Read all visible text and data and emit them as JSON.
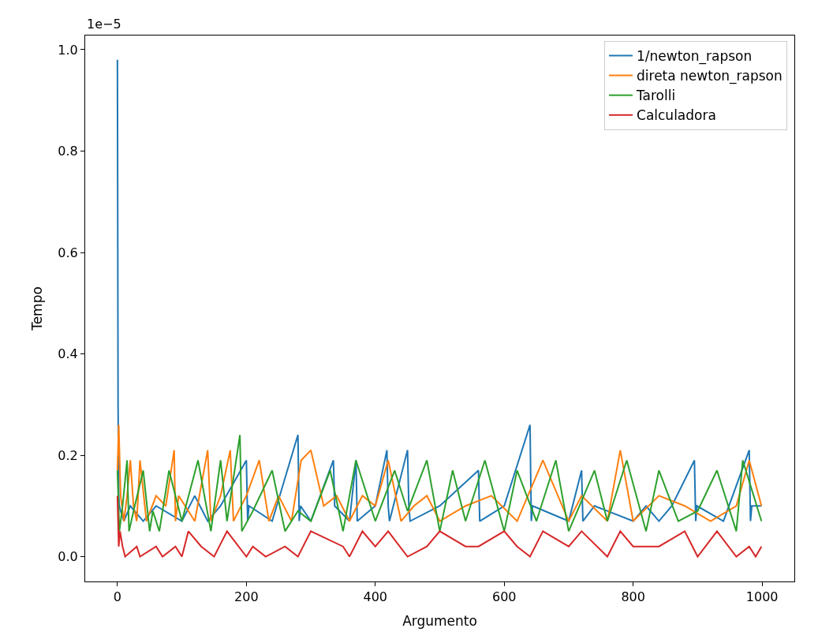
{
  "chart_data": {
    "type": "line",
    "xlabel": "Argumento",
    "ylabel": "Tempo",
    "annotations": [
      "1e−5"
    ],
    "xlim": [
      -50,
      1050
    ],
    "xticks": [
      0,
      200,
      400,
      600,
      800,
      1000
    ],
    "ylim": [
      -0.049,
      1.028
    ],
    "yticks": [
      {
        "value": 0,
        "label": "0.0"
      },
      0.2,
      0.4,
      0.6,
      0.8,
      {
        "value": 1,
        "label": "1.0"
      }
    ],
    "legend": "top right",
    "marker": "none",
    "line_style": "solid",
    "series": [
      {
        "name": "1/newton_rapson",
        "color": "#1f77b4",
        "x": [
          0,
          1,
          2,
          3,
          5,
          10,
          20,
          40,
          60,
          100,
          120,
          140,
          160,
          200,
          202,
          204,
          240,
          280,
          282,
          284,
          300,
          335,
          337,
          360,
          370,
          372,
          400,
          418,
          420,
          422,
          450,
          452,
          454,
          500,
          560,
          562,
          600,
          640,
          642,
          644,
          700,
          720,
          722,
          740,
          800,
          820,
          840,
          860,
          895,
          897,
          899,
          940,
          980,
          982,
          984,
          999
        ],
        "values": [
          0.98,
          0.3,
          0.12,
          0.1,
          0.09,
          0.07,
          0.1,
          0.07,
          0.1,
          0.07,
          0.12,
          0.07,
          0.1,
          0.19,
          0.07,
          0.1,
          0.07,
          0.24,
          0.07,
          0.1,
          0.07,
          0.19,
          0.1,
          0.07,
          0.19,
          0.07,
          0.1,
          0.21,
          0.1,
          0.07,
          0.21,
          0.1,
          0.07,
          0.1,
          0.17,
          0.07,
          0.1,
          0.26,
          0.07,
          0.1,
          0.07,
          0.17,
          0.07,
          0.1,
          0.07,
          0.1,
          0.07,
          0.1,
          0.19,
          0.07,
          0.1,
          0.07,
          0.21,
          0.07,
          0.1,
          0.1
        ]
      },
      {
        "name": "direta newton_rapson",
        "color": "#ff7f0e",
        "x": [
          0,
          2,
          5,
          10,
          15,
          20,
          25,
          30,
          35,
          45,
          60,
          75,
          88,
          90,
          95,
          105,
          120,
          140,
          145,
          160,
          175,
          180,
          200,
          220,
          235,
          250,
          270,
          285,
          300,
          320,
          340,
          360,
          380,
          400,
          420,
          440,
          460,
          480,
          500,
          540,
          580,
          620,
          660,
          700,
          720,
          760,
          780,
          800,
          840,
          880,
          920,
          960,
          980,
          999
        ],
        "values": [
          0.17,
          0.26,
          0.12,
          0.07,
          0.12,
          0.19,
          0.1,
          0.07,
          0.19,
          0.07,
          0.12,
          0.1,
          0.21,
          0.07,
          0.12,
          0.1,
          0.07,
          0.21,
          0.07,
          0.12,
          0.21,
          0.07,
          0.12,
          0.19,
          0.07,
          0.12,
          0.07,
          0.19,
          0.21,
          0.1,
          0.12,
          0.07,
          0.12,
          0.1,
          0.19,
          0.07,
          0.1,
          0.12,
          0.07,
          0.1,
          0.12,
          0.07,
          0.19,
          0.07,
          0.12,
          0.07,
          0.21,
          0.07,
          0.12,
          0.1,
          0.07,
          0.1,
          0.19,
          0.1
        ]
      },
      {
        "name": "Tarolli",
        "color": "#2ca02c",
        "x": [
          0,
          3,
          8,
          15,
          18,
          25,
          40,
          50,
          55,
          65,
          80,
          100,
          125,
          145,
          160,
          170,
          190,
          193,
          210,
          240,
          260,
          280,
          300,
          330,
          350,
          370,
          400,
          430,
          450,
          480,
          500,
          520,
          540,
          570,
          600,
          620,
          650,
          680,
          700,
          740,
          760,
          790,
          820,
          840,
          870,
          900,
          930,
          960,
          970,
          999
        ],
        "values": [
          0.17,
          0.05,
          0.1,
          0.19,
          0.05,
          0.09,
          0.17,
          0.05,
          0.09,
          0.05,
          0.17,
          0.07,
          0.19,
          0.05,
          0.19,
          0.07,
          0.24,
          0.05,
          0.09,
          0.17,
          0.05,
          0.09,
          0.07,
          0.17,
          0.05,
          0.19,
          0.07,
          0.17,
          0.09,
          0.19,
          0.05,
          0.17,
          0.07,
          0.19,
          0.05,
          0.17,
          0.07,
          0.19,
          0.05,
          0.17,
          0.07,
          0.19,
          0.05,
          0.17,
          0.07,
          0.09,
          0.17,
          0.05,
          0.19,
          0.07
        ]
      },
      {
        "name": "Calculadora",
        "color": "#d62728",
        "x": [
          0,
          2,
          4,
          8,
          12,
          30,
          35,
          60,
          70,
          90,
          100,
          110,
          130,
          150,
          170,
          200,
          210,
          230,
          260,
          280,
          300,
          350,
          360,
          380,
          400,
          420,
          450,
          480,
          500,
          540,
          560,
          600,
          620,
          640,
          660,
          700,
          720,
          760,
          780,
          800,
          840,
          880,
          900,
          930,
          960,
          980,
          990,
          999
        ],
        "values": [
          0.12,
          0.02,
          0.05,
          0.02,
          0.0,
          0.02,
          0.0,
          0.02,
          0.0,
          0.02,
          0.0,
          0.05,
          0.02,
          0.0,
          0.05,
          0.0,
          0.02,
          0.0,
          0.02,
          0.0,
          0.05,
          0.02,
          0.0,
          0.05,
          0.02,
          0.05,
          0.0,
          0.02,
          0.05,
          0.02,
          0.02,
          0.05,
          0.02,
          0.0,
          0.05,
          0.02,
          0.05,
          0.0,
          0.05,
          0.02,
          0.02,
          0.05,
          0.0,
          0.05,
          0.0,
          0.02,
          0.0,
          0.02
        ]
      }
    ]
  }
}
